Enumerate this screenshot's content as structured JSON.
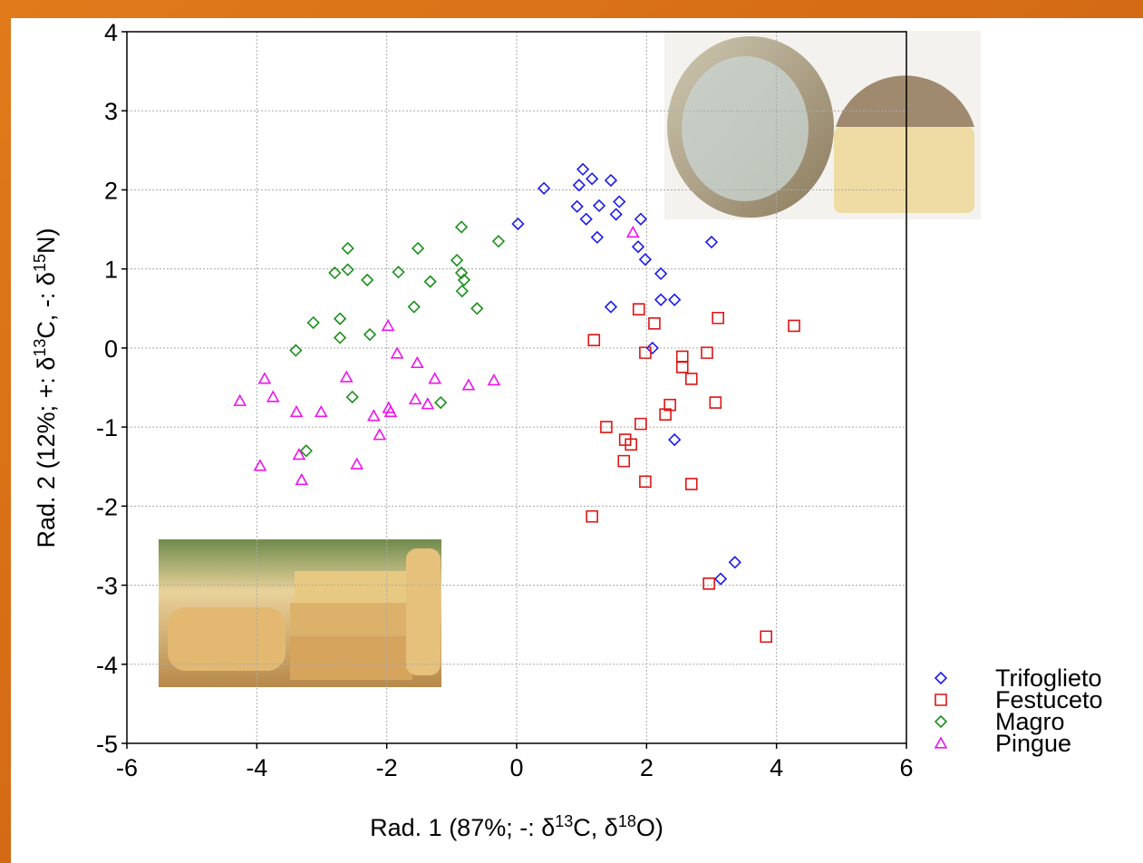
{
  "chart_data": {
    "type": "scatter",
    "x_label": [
      "Rad. 1 (87%; -: δ",
      "13",
      "C, δ",
      "18",
      "O)"
    ],
    "y_label": [
      "Rad. 2 (12%; +: δ",
      "13",
      "C, -: δ",
      "15",
      "N)"
    ],
    "xlim": [
      -6,
      6
    ],
    "xticks": [
      -6,
      -4,
      -2,
      0,
      2,
      4,
      6
    ],
    "ylim": [
      -5,
      4
    ],
    "yticks": [
      -5,
      -4,
      -3,
      -2,
      -1,
      0,
      1,
      2,
      3,
      4
    ],
    "grid": true,
    "legend": "right",
    "series": [
      {
        "name": "Trifoglieto",
        "color": "#1a1aee",
        "marker": "diamond",
        "x": [
          0.42,
          0.02,
          1.02,
          0.96,
          1.16,
          1.45,
          0.93,
          1.27,
          1.07,
          1.58,
          1.53,
          1.24,
          1.91,
          1.87,
          1.98,
          2.22,
          3.0,
          2.22,
          2.43,
          1.45,
          2.09,
          2.43,
          3.36,
          3.14
        ],
        "values": [
          2.02,
          1.57,
          2.26,
          2.06,
          2.14,
          2.12,
          1.79,
          1.8,
          1.63,
          1.85,
          1.69,
          1.4,
          1.63,
          1.28,
          1.12,
          0.94,
          1.34,
          0.61,
          0.61,
          0.52,
          0.0,
          -1.16,
          -2.71,
          -2.92
        ]
      },
      {
        "name": "Festuceto",
        "color": "#e01414",
        "marker": "square",
        "x": [
          4.27,
          3.1,
          1.88,
          2.12,
          1.19,
          2.55,
          2.93,
          2.55,
          1.98,
          2.69,
          3.06,
          2.36,
          2.29,
          1.38,
          1.91,
          1.67,
          1.76,
          1.65,
          1.98,
          2.69,
          1.16,
          2.96,
          3.84
        ],
        "values": [
          0.28,
          0.38,
          0.49,
          0.31,
          0.1,
          -0.11,
          -0.06,
          -0.24,
          -0.06,
          -0.39,
          -0.69,
          -0.72,
          -0.84,
          -1.0,
          -0.96,
          -1.16,
          -1.22,
          -1.43,
          -1.69,
          -1.72,
          -2.13,
          -2.98,
          -3.65
        ]
      },
      {
        "name": "Magro",
        "color": "#1a8f1a",
        "marker": "diamond",
        "x": [
          -0.85,
          -0.28,
          -2.6,
          -1.52,
          -0.92,
          -2.6,
          -2.8,
          -1.82,
          -0.85,
          -0.81,
          -2.3,
          -1.33,
          -0.84,
          -0.61,
          -1.58,
          -2.72,
          -3.13,
          -2.26,
          -2.72,
          -3.4,
          -2.53,
          -1.17,
          -3.24
        ],
        "values": [
          1.53,
          1.35,
          1.26,
          1.26,
          1.11,
          0.99,
          0.95,
          0.96,
          0.95,
          0.86,
          0.86,
          0.84,
          0.72,
          0.5,
          0.52,
          0.37,
          0.32,
          0.17,
          0.13,
          -0.03,
          -0.62,
          -0.69,
          -1.3
        ]
      },
      {
        "name": "Pingue",
        "color": "#ee14ee",
        "marker": "triangle",
        "x": [
          1.79,
          -1.98,
          -1.84,
          -3.88,
          -2.62,
          -1.53,
          -1.26,
          -0.35,
          -0.74,
          -3.75,
          -4.26,
          -1.56,
          -1.37,
          -1.97,
          -1.94,
          -3.39,
          -3.01,
          -2.2,
          -2.11,
          -3.35,
          -3.95,
          -2.46,
          -3.31
        ],
        "values": [
          1.46,
          0.28,
          -0.07,
          -0.39,
          -0.37,
          -0.19,
          -0.39,
          -0.41,
          -0.47,
          -0.62,
          -0.67,
          -0.65,
          -0.71,
          -0.76,
          -0.81,
          -0.81,
          -0.81,
          -0.86,
          -1.1,
          -1.35,
          -1.49,
          -1.47,
          -1.67
        ]
      }
    ]
  }
}
